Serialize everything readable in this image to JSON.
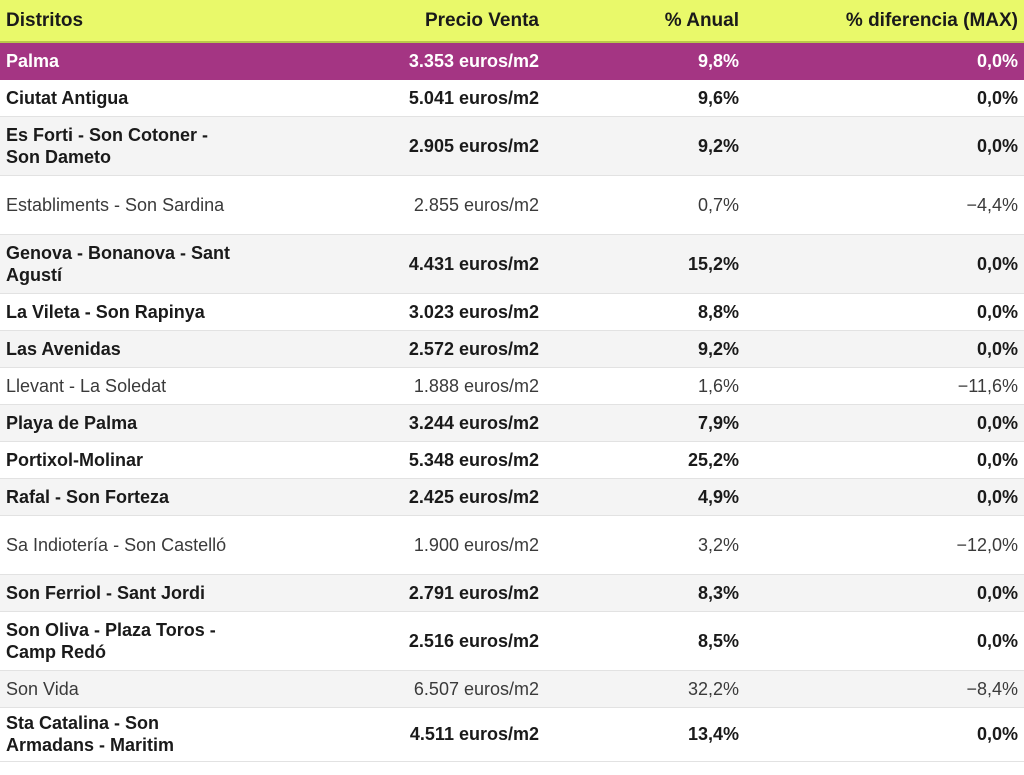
{
  "table": {
    "headers": {
      "distritos": "Distritos",
      "precio": "Precio Venta",
      "anual": "% Anual",
      "diferencia": "% diferencia (MAX)"
    },
    "highlight_color": "#a43583",
    "header_color": "#e9f96a",
    "rows": [
      {
        "name": "Palma",
        "price": "3.353 euros/m2",
        "anual": "9,8%",
        "diff": "0,0%"
      },
      {
        "name": "Ciutat Antigua",
        "price": "5.041 euros/m2",
        "anual": "9,6%",
        "diff": "0,0%"
      },
      {
        "name": "Es Forti - Son Cotoner - Son Dameto",
        "price": "2.905 euros/m2",
        "anual": "9,2%",
        "diff": "0,0%"
      },
      {
        "name": "Establiments - Son Sardina",
        "price": "2.855 euros/m2",
        "anual": "0,7%",
        "diff": "−4,4%"
      },
      {
        "name": "Genova - Bonanova - Sant Agustí",
        "price": "4.431 euros/m2",
        "anual": "15,2%",
        "diff": "0,0%"
      },
      {
        "name": "La Vileta - Son Rapinya",
        "price": "3.023 euros/m2",
        "anual": "8,8%",
        "diff": "0,0%"
      },
      {
        "name": "Las Avenidas",
        "price": "2.572 euros/m2",
        "anual": "9,2%",
        "diff": "0,0%"
      },
      {
        "name": "Llevant - La Soledat",
        "price": "1.888 euros/m2",
        "anual": "1,6%",
        "diff": "−11,6%"
      },
      {
        "name": "Playa de Palma",
        "price": "3.244 euros/m2",
        "anual": "7,9%",
        "diff": "0,0%"
      },
      {
        "name": "Portixol-Molinar",
        "price": "5.348 euros/m2",
        "anual": "25,2%",
        "diff": "0,0%"
      },
      {
        "name": "Rafal - Son Forteza",
        "price": "2.425 euros/m2",
        "anual": "4,9%",
        "diff": "0,0%"
      },
      {
        "name": "Sa Indiotería - Son Castelló",
        "price": "1.900 euros/m2",
        "anual": "3,2%",
        "diff": "−12,0%"
      },
      {
        "name": "Son Ferriol - Sant Jordi",
        "price": "2.791 euros/m2",
        "anual": "8,3%",
        "diff": "0,0%"
      },
      {
        "name": "Son Oliva - Plaza Toros - Camp Redó",
        "price": "2.516 euros/m2",
        "anual": "8,5%",
        "diff": "0,0%"
      },
      {
        "name": "Son Vida",
        "price": "6.507 euros/m2",
        "anual": "32,2%",
        "diff": "−8,4%"
      },
      {
        "name": "Sta Catalina - Son Armadans - Maritim",
        "price": "4.511 euros/m2",
        "anual": "13,4%",
        "diff": "0,0%"
      }
    ]
  }
}
